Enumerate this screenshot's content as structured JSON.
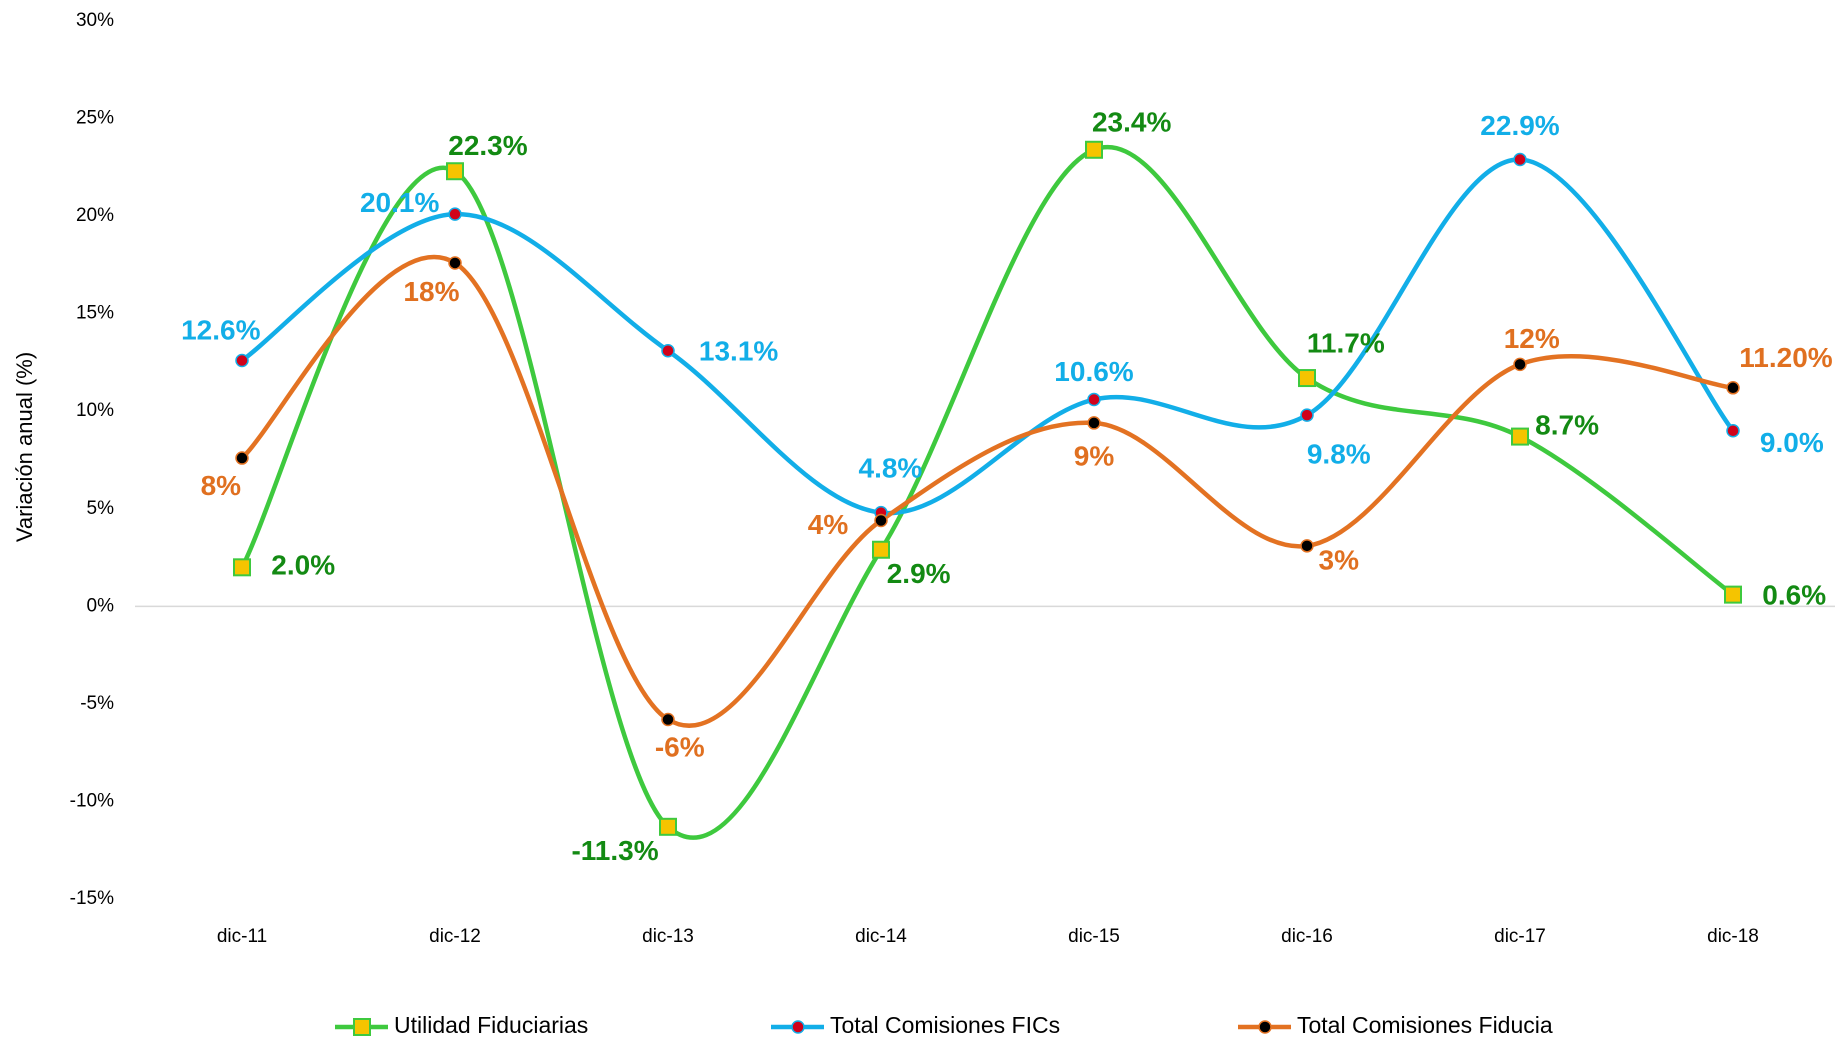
{
  "chart_data": {
    "type": "line",
    "y_label": "Variación anual (%)",
    "categories": [
      "dic-11",
      "dic-12",
      "dic-13",
      "dic-14",
      "dic-15",
      "dic-16",
      "dic-17",
      "dic-18"
    ],
    "ylim": [
      -15,
      30
    ],
    "yticks": [
      {
        "value": -15,
        "label": "-15%"
      },
      {
        "value": -10,
        "label": "-10%"
      },
      {
        "value": -5,
        "label": "-5%"
      },
      {
        "value": 0,
        "label": "0%"
      },
      {
        "value": 5,
        "label": "5%"
      },
      {
        "value": 10,
        "label": "10%"
      },
      {
        "value": 15,
        "label": "15%"
      },
      {
        "value": 20,
        "label": "20%"
      },
      {
        "value": 25,
        "label": "25%"
      },
      {
        "value": 30,
        "label": "30%"
      }
    ],
    "series": [
      {
        "name": "Utilidad Fiduciarias",
        "color": "#3ec93e",
        "label_color": "#138a13",
        "marker": "square",
        "marker_fill": "#f5c400",
        "values": [
          2.0,
          22.3,
          -11.3,
          2.9,
          23.4,
          11.7,
          8.7,
          0.6
        ],
        "value_labels": [
          "2.0%",
          "22.3%",
          "-11.3%",
          "2.9%",
          "23.4%",
          "11.7%",
          "8.7%",
          "0.6%"
        ]
      },
      {
        "name": "Total Comisiones FICs",
        "color": "#12aee8",
        "label_color": "#12aee8",
        "marker": "circle",
        "marker_fill": "#d0021b",
        "values": [
          12.6,
          20.1,
          13.1,
          4.8,
          10.6,
          9.8,
          22.9,
          9.0
        ],
        "value_labels": [
          "12.6%",
          "20.1%",
          "13.1%",
          "4.8%",
          "10.6%",
          "9.8%",
          "22.9%",
          "9.0%"
        ]
      },
      {
        "name": "Total Comisiones Fiducia",
        "color": "#e37222",
        "label_color": "#e07020",
        "marker": "circle",
        "marker_fill": "#000000",
        "values": [
          7.6,
          17.6,
          -5.8,
          4.4,
          9.4,
          3.1,
          12.4,
          11.2
        ],
        "value_labels": [
          "8%",
          "18%",
          "-6%",
          "4%",
          "9%",
          "3%",
          "12%",
          "11.20%"
        ]
      }
    ]
  }
}
